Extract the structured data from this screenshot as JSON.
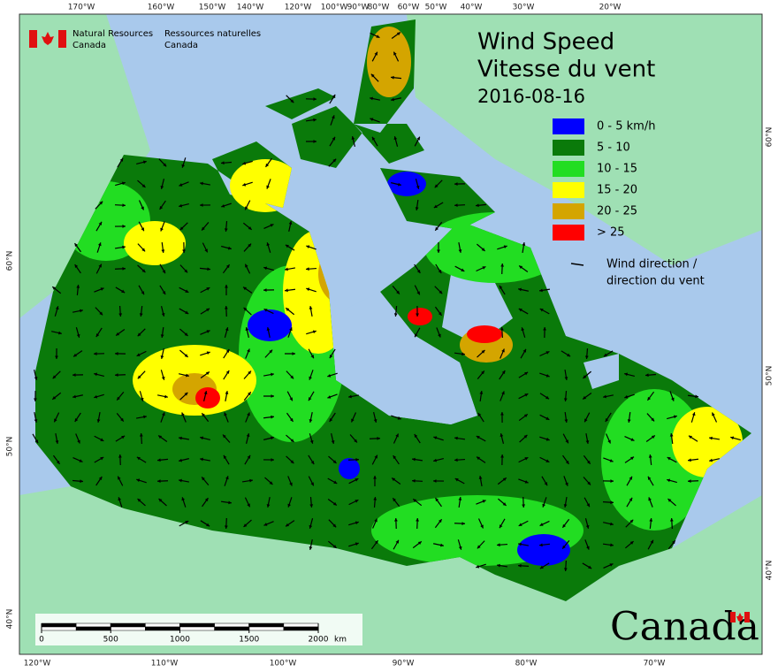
{
  "header": {
    "agency_en": [
      "Natural Resources",
      "Canada"
    ],
    "agency_fr": [
      "Ressources naturelles",
      "Canada"
    ]
  },
  "title": {
    "en": "Wind Speed",
    "fr": "Vitesse du vent",
    "date": "2016-08-16"
  },
  "legend": {
    "classes": [
      {
        "label": "0 - 5 km/h",
        "color": "#0000ff"
      },
      {
        "label": "5 - 10",
        "color": "#0a7a0a"
      },
      {
        "label": "10 - 15",
        "color": "#22dd22"
      },
      {
        "label": "15 - 20",
        "color": "#ffff00"
      },
      {
        "label": "20 - 25",
        "color": "#d4a500"
      },
      {
        "label": "> 25",
        "color": "#ff0000"
      }
    ],
    "arrow_label": [
      "Wind direction /",
      "direction du vent"
    ]
  },
  "graticule": {
    "top": [
      "170°W",
      "160°W",
      "150°W",
      "140°W",
      "120°W",
      "100°W",
      "90°W",
      "80°W",
      "60°W",
      "50°W",
      "40°W",
      "30°W",
      "20°W"
    ],
    "bottom": [
      "120°W",
      "110°W",
      "100°W",
      "90°W",
      "80°W",
      "70°W"
    ],
    "left": [
      "60°N",
      "50°N",
      "40°N"
    ],
    "right": [
      "60°N",
      "50°N",
      "40°N"
    ]
  },
  "scale_bar": {
    "ticks": [
      0,
      500,
      1000,
      1500,
      2000
    ],
    "unit": "km"
  },
  "wordmark": "Canada"
}
